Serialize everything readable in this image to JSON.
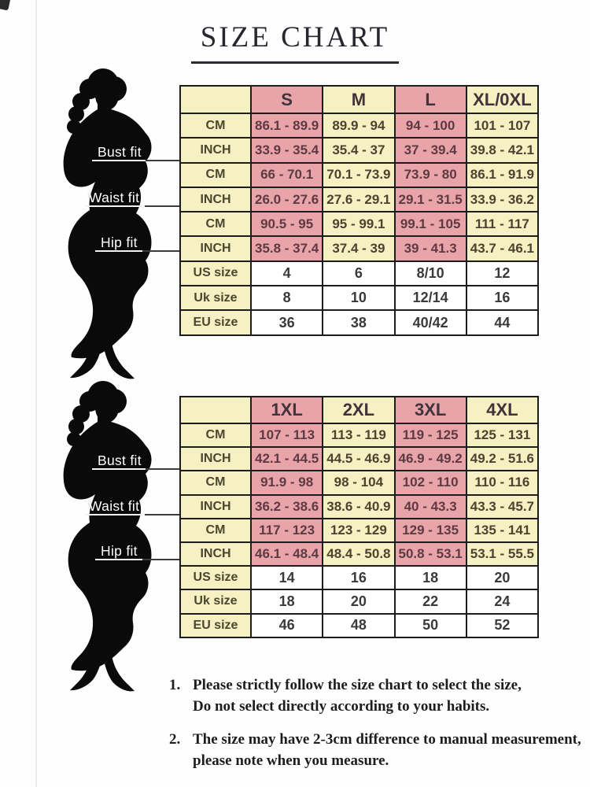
{
  "title": "SIZE CHART",
  "figure_labels": {
    "bust": "Bust fit",
    "waist": "Waist fit",
    "hip": "Hip fit"
  },
  "tables": [
    {
      "sizes": [
        "S",
        "M",
        "L",
        "XL/0XL"
      ],
      "rows": [
        {
          "label": "CM",
          "values": [
            "86.1 - 89.9",
            "89.9 - 94",
            "94 - 100",
            "101 - 107"
          ]
        },
        {
          "label": "INCH",
          "values": [
            "33.9 - 35.4",
            "35.4 - 37",
            "37 - 39.4",
            "39.8 - 42.1"
          ]
        },
        {
          "label": "CM",
          "values": [
            "66 - 70.1",
            "70.1 - 73.9",
            "73.9 - 80",
            "86.1 - 91.9"
          ]
        },
        {
          "label": "INCH",
          "values": [
            "26.0 - 27.6",
            "27.6 - 29.1",
            "29.1 - 31.5",
            "33.9 - 36.2"
          ]
        },
        {
          "label": "CM",
          "values": [
            "90.5 - 95",
            "95 - 99.1",
            "99.1 - 105",
            "111 - 117"
          ]
        },
        {
          "label": "INCH",
          "values": [
            "35.8 - 37.4",
            "37.4 - 39",
            "39 - 41.3",
            "43.7 - 46.1"
          ]
        },
        {
          "label": "US size",
          "values": [
            "4",
            "6",
            "8/10",
            "12"
          ]
        },
        {
          "label": "Uk size",
          "values": [
            "8",
            "10",
            "12/14",
            "16"
          ]
        },
        {
          "label": "EU size",
          "values": [
            "36",
            "38",
            "40/42",
            "44"
          ]
        }
      ]
    },
    {
      "sizes": [
        "1XL",
        "2XL",
        "3XL",
        "4XL"
      ],
      "rows": [
        {
          "label": "CM",
          "values": [
            "107 - 113",
            "113 - 119",
            "119 - 125",
            "125 - 131"
          ]
        },
        {
          "label": "INCH",
          "values": [
            "42.1 - 44.5",
            "44.5 - 46.9",
            "46.9 - 49.2",
            "49.2 - 51.6"
          ]
        },
        {
          "label": "CM",
          "values": [
            "91.9 - 98",
            "98 - 104",
            "102 - 110",
            "110 - 116"
          ]
        },
        {
          "label": "INCH",
          "values": [
            "36.2 - 38.6",
            "38.6 - 40.9",
            "40 - 43.3",
            "43.3 - 45.7"
          ]
        },
        {
          "label": "CM",
          "values": [
            "117 - 123",
            "123 - 129",
            "129 - 135",
            "135 - 141"
          ]
        },
        {
          "label": "INCH",
          "values": [
            "46.1 - 48.4",
            "48.4 - 50.8",
            "50.8 - 53.1",
            "53.1 - 55.5"
          ]
        },
        {
          "label": "US size",
          "values": [
            "14",
            "16",
            "18",
            "20"
          ]
        },
        {
          "label": "Uk size",
          "values": [
            "18",
            "20",
            "22",
            "24"
          ]
        },
        {
          "label": "EU size",
          "values": [
            "46",
            "48",
            "50",
            "52"
          ]
        }
      ]
    }
  ],
  "notes": [
    {
      "num": "1.",
      "line1": "Please strictly follow the size chart to select the size,",
      "line2": "Do not select directly according to your habits."
    },
    {
      "num": "2.",
      "line1": "The size may have 2-3cm difference  to manual measurement,",
      "line2": "please note when you measure."
    }
  ],
  "colors": {
    "pink": "#e9a4aa",
    "yellow": "#f5f1c3",
    "border": "#1c1c1c",
    "title": "#26262e",
    "silhouette": "#0a0a0a"
  }
}
